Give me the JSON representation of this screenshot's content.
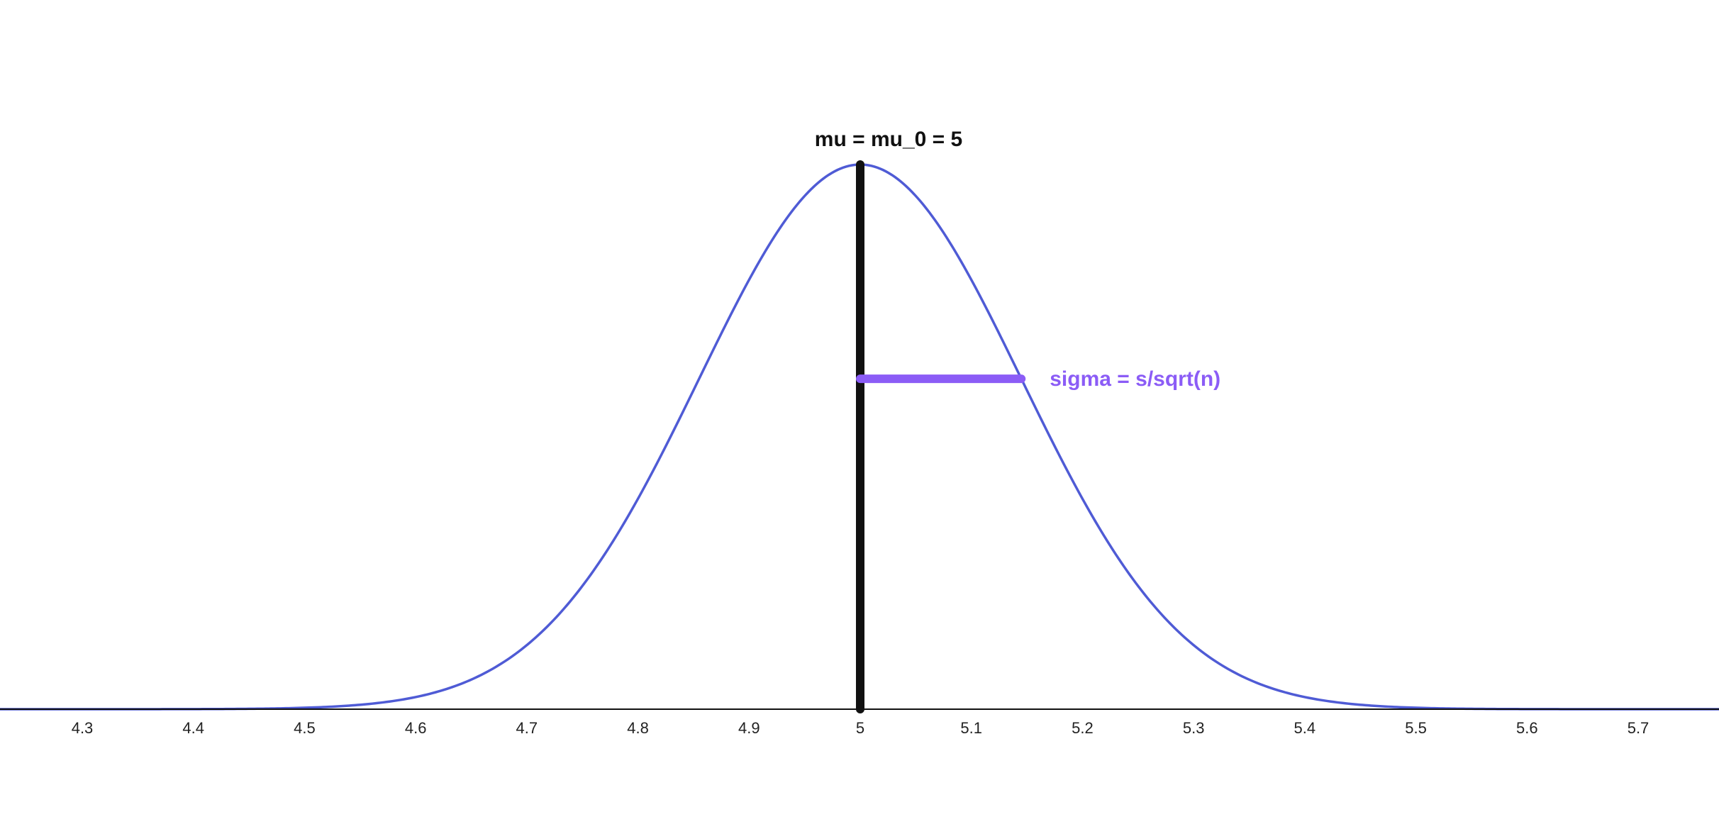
{
  "chart_data": {
    "type": "line",
    "title": "",
    "xlabel": "",
    "ylabel": "",
    "xlim": [
      4.225,
      5.775
    ],
    "ylim": [
      0,
      1
    ],
    "grid": false,
    "x_ticks": [
      "4.3",
      "4.4",
      "4.5",
      "4.6",
      "4.7",
      "4.8",
      "4.9",
      "5",
      "5.1",
      "5.2",
      "5.3",
      "5.4",
      "5.5",
      "5.6",
      "5.7"
    ],
    "distribution": {
      "kind": "normal",
      "mean": 5,
      "sd": 0.145
    },
    "mean_line": {
      "x": 5,
      "label": "mu = mu_0 = 5"
    },
    "sigma_bar": {
      "from_x": 5,
      "to_x": 5.145,
      "label": "sigma = s/sqrt(n)"
    },
    "colors": {
      "curve": "#4f5bd5",
      "mean_line": "#111111",
      "sigma_bar": "#8b5cf6",
      "axis": "#111111"
    }
  }
}
